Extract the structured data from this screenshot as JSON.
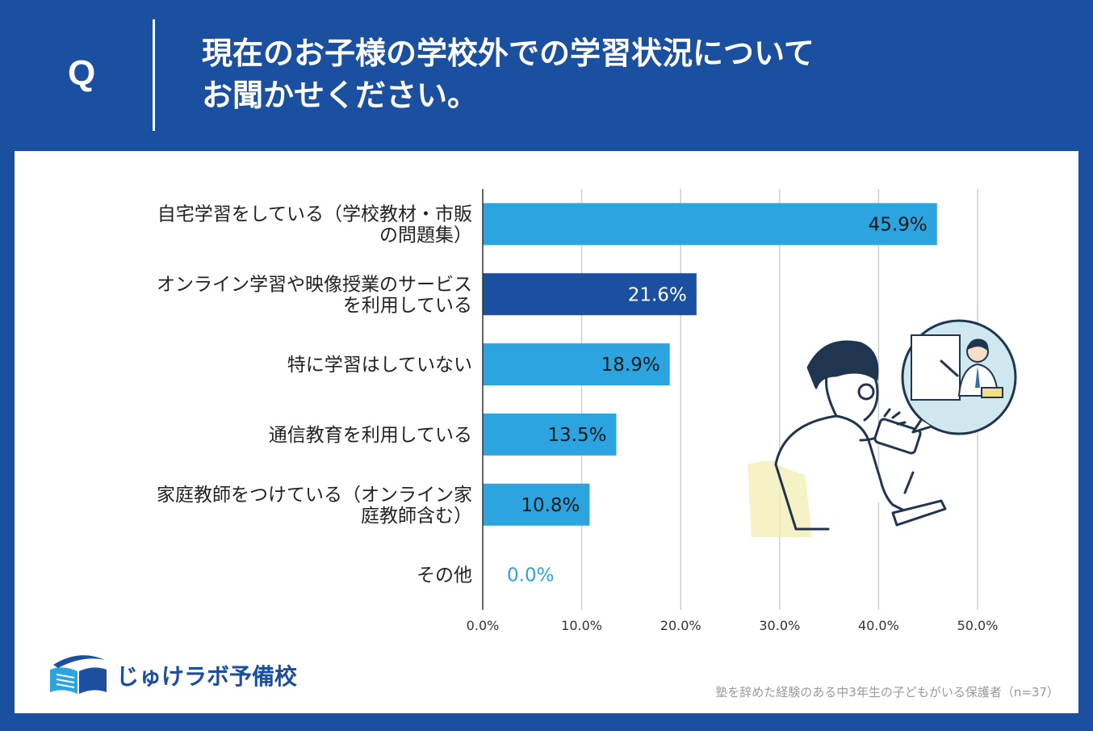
{
  "question": {
    "mark": "Q",
    "line1": "現在のお子様の学校外での学習状況について",
    "line2": "お聞かせください。"
  },
  "chart_data": {
    "type": "bar",
    "orientation": "horizontal",
    "categories": [
      [
        "自宅学習をしている（学校教材・市販",
        "の問題集）"
      ],
      [
        "オンライン学習や映像授業のサービス",
        "を利用している"
      ],
      [
        "特に学習はしていない"
      ],
      [
        "通信教育を利用している"
      ],
      [
        "家庭教師をつけている（オンライン家",
        "庭教師含む）"
      ],
      [
        "その他"
      ]
    ],
    "values": [
      45.9,
      21.6,
      18.9,
      13.5,
      10.8,
      0.0
    ],
    "value_labels": [
      "45.9%",
      "21.6%",
      "18.9%",
      "13.5%",
      "10.8%",
      "0.0%"
    ],
    "xlim": [
      0,
      50
    ],
    "x_ticks": [
      "0.0%",
      "10.0%",
      "20.0%",
      "30.0%",
      "40.0%",
      "50.0%"
    ],
    "colors": [
      "#2ba4e0",
      "#1b4fa0",
      "#2ba4e0",
      "#2ba4e0",
      "#2ba4e0",
      "#2ba4e0"
    ],
    "highlight_index": 1,
    "grid": true
  },
  "logo": {
    "text": "じゅけラボ予備校"
  },
  "footnote": "塾を辞めた経験のある中3年生の子どもがいる保護者（n=37）",
  "colors": {
    "brand": "#1b4fa0",
    "bar": "#2ba4e0",
    "bar_highlight": "#1b4fa0"
  }
}
